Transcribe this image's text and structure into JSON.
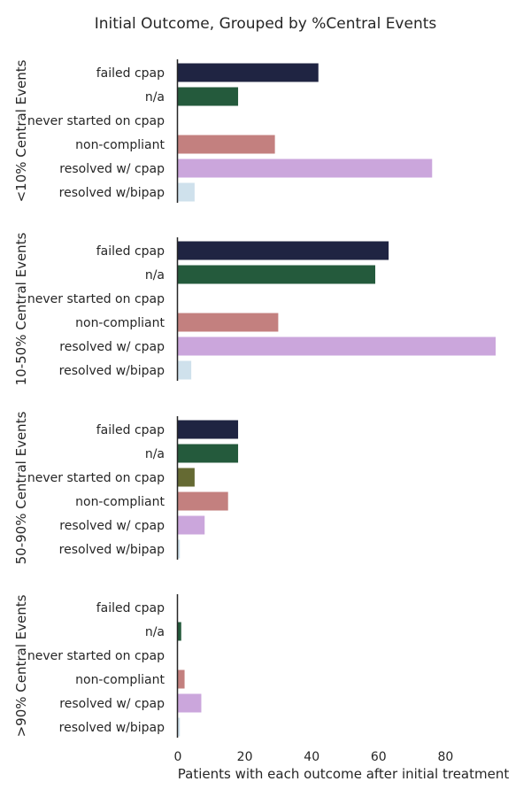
{
  "chart_data": {
    "type": "bar",
    "orientation": "horizontal",
    "title": "Initial Outcome, Grouped by %Central Events",
    "xlabel": "Patients with each outcome after initial treatment",
    "xlim": [
      0,
      95
    ],
    "xticks": [
      0,
      20,
      40,
      60,
      80
    ],
    "categories": [
      "failed cpap",
      "n/a",
      "never started on cpap",
      "non-compliant",
      "resolved w/ cpap",
      "resolved w/bipap"
    ],
    "colors": [
      "#1f2442",
      "#245a3c",
      "#656a33",
      "#c3807f",
      "#cba6dc",
      "#cfe1ec"
    ],
    "panels": [
      {
        "label": "<10% Central Events",
        "values": [
          42,
          18,
          0,
          29,
          76,
          5
        ]
      },
      {
        "label": "10-50% Central Events",
        "values": [
          63,
          59,
          0,
          30,
          95,
          4
        ]
      },
      {
        "label": "50-90% Central Events",
        "values": [
          18,
          18,
          5,
          15,
          8,
          0.6
        ]
      },
      {
        "label": ">90% Central Events",
        "values": [
          0,
          1,
          0,
          2,
          7,
          0.6
        ]
      }
    ],
    "grid": false,
    "legend": "none"
  }
}
